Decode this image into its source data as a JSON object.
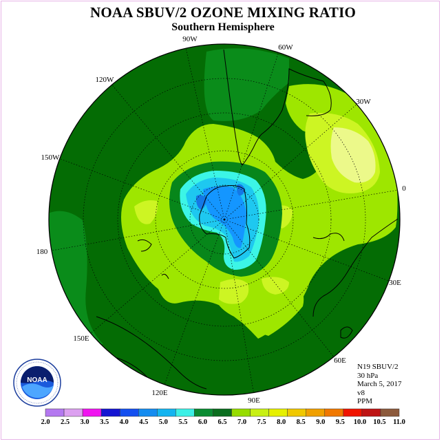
{
  "header": {
    "title": "NOAA SBUV/2 OZONE MIXING RATIO",
    "subtitle": "Southern Hemisphere"
  },
  "map": {
    "longitude_labels": [
      "90W",
      "60W",
      "30W",
      "0",
      "30E",
      "60E",
      "90E",
      "120E",
      "150E",
      "180",
      "150W",
      "120W"
    ],
    "field_colors": {
      "dark_green": "#046c04",
      "mid_green": "#0a8c1a",
      "green_65": "#07861a",
      "lime_75": "#9ee600",
      "yellowgreen_80": "#cdf523",
      "light_yellow_85": "#ecf98a",
      "cyan_60": "#3cf5e6",
      "sky_55": "#1ec8f0",
      "blue_50": "#1496ff",
      "blue_45": "#1478e6"
    }
  },
  "info": {
    "satellite": "N19 SBUV/2",
    "level": "30 hPa",
    "date": "March 5, 2017",
    "version": "v8",
    "units": "PPM"
  },
  "logo": {
    "text": "NOAA"
  },
  "legend": {
    "ticks": [
      "2.0",
      "2.5",
      "3.0",
      "3.5",
      "4.0",
      "4.5",
      "5.0",
      "5.5",
      "6.0",
      "6.5",
      "7.0",
      "7.5",
      "8.0",
      "8.5",
      "9.0",
      "9.5",
      "10.0",
      "10.5",
      "11.0"
    ],
    "colors": [
      "#b478f0",
      "#dca0f0",
      "#f014f0",
      "#1414d2",
      "#1450f0",
      "#148cf0",
      "#14b4f0",
      "#3cf0e6",
      "#0a8c32",
      "#0a6e1e",
      "#96dc00",
      "#c8f014",
      "#e6f000",
      "#f0c800",
      "#f0a000",
      "#f07800",
      "#f01400",
      "#be1414",
      "#8c5a3c"
    ]
  }
}
